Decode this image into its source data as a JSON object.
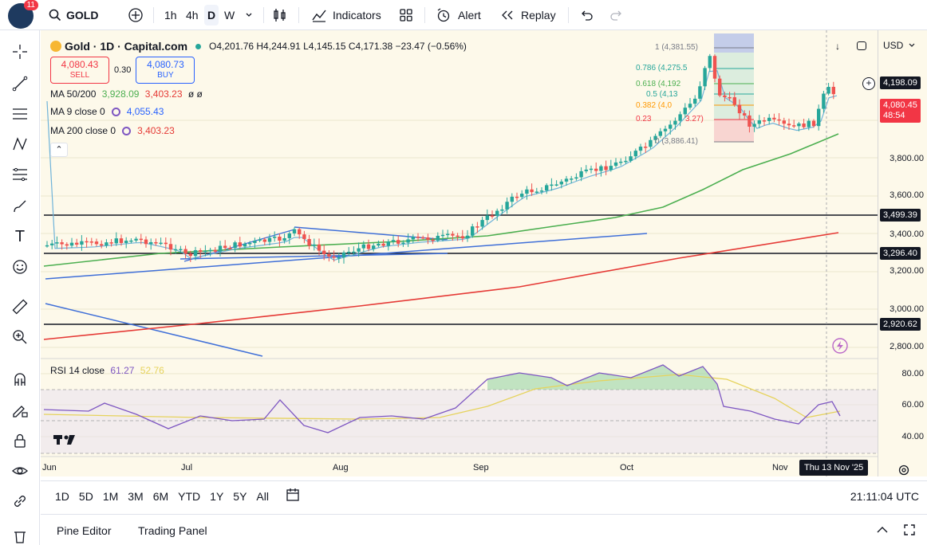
{
  "topbar": {
    "notif_count": "11",
    "symbol": "GOLD",
    "intervals": [
      "1h",
      "4h",
      "D",
      "W"
    ],
    "indicators_label": "Indicators",
    "alert_label": "Alert",
    "replay_label": "Replay"
  },
  "legend": {
    "title": "Gold · 1D · Capital.com",
    "ohlc": "O4,201.76  H4,244.91  L4,145.15  C4,171.38  −23.47 (−0.56%)",
    "sell_price": "4,080.43",
    "sell_label": "SELL",
    "spread": "0.30",
    "buy_price": "4,080.73",
    "buy_label": "BUY",
    "ma50_200_label": "MA 50/200",
    "ma50_value": "3,928.09",
    "ma200_value": "3,403.23",
    "ma50_200_extra": "ø ø",
    "ma9_label": "MA 9 close 0",
    "ma9_value": "4,055.43",
    "ma200c_label": "MA 200 close 0",
    "ma200c_value": "3,403.23"
  },
  "fib": {
    "l1": "1 (4,381.55)",
    "l0786": "0.786 (4,275.5",
    "l0618": "0.618 (4,192",
    "l05": "0.5 (4,13",
    "l0382": "0.382 (4,0",
    "l0236": "0.23",
    "l0236b": "3.27)",
    "l0": "0 (3,886.41)"
  },
  "rsi": {
    "label": "RSI 14 close",
    "value": "61.27",
    "ma": "52.76"
  },
  "price_axis": {
    "currency": "USD",
    "ticks": [
      "3,800.00",
      "3,600.00",
      "3,400.00",
      "3,200.00",
      "3,000.00",
      "2,800.00"
    ],
    "rsi_ticks": [
      "80.00",
      "60.00",
      "40.00"
    ],
    "current_tag": "4,198.09",
    "last_tag": "4,080.45",
    "countdown": "48:54",
    "level_3499": "3,499.39",
    "level_3296": "3,296.40",
    "level_2920": "2,920.62"
  },
  "time_axis": {
    "labels": [
      "Jun",
      "Jul",
      "Aug",
      "Sep",
      "Oct",
      "Nov"
    ],
    "cursor_date": "Thu 13 Nov '25"
  },
  "bottombar": {
    "ranges": [
      "1D",
      "5D",
      "1M",
      "3M",
      "6M",
      "YTD",
      "1Y",
      "5Y",
      "All"
    ],
    "clock": "21:11:04 UTC"
  },
  "footer": {
    "pine_editor": "Pine Editor",
    "trading_panel": "Trading Panel"
  },
  "colors": {
    "up": "#26a69a",
    "down": "#ef5350",
    "ma50": "#4caf50",
    "ma200": "#e53935",
    "ma9": "#64b5f6",
    "trend": "#3f6fd8"
  }
}
